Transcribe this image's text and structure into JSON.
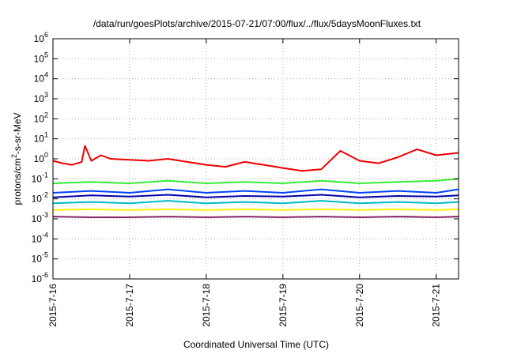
{
  "chart_data": {
    "type": "line",
    "title": "/data/run/goesPlots/archive/2015-07-21/07:00/flux/../flux/5daysMoonFluxes.txt",
    "xlabel": "Coordinated Universal Time (UTC)",
    "ylabel_parts": {
      "pre": "protons/cm",
      "sup": "2",
      "post": "-s-sr-MeV"
    },
    "y_scale": "log",
    "ylim": [
      1e-06,
      1000000.0
    ],
    "xlim": [
      "2015-07-16T00:00",
      "2015-07-21T07:00"
    ],
    "x_ticks": [
      "2015-7-16",
      "2015-7-17",
      "2015-7-18",
      "2015-7-19",
      "2015-7-20",
      "2015-7-21"
    ],
    "y_ticks": [
      {
        "base": "10",
        "exp": "6"
      },
      {
        "base": "10",
        "exp": "5"
      },
      {
        "base": "10",
        "exp": "4"
      },
      {
        "base": "10",
        "exp": "3"
      },
      {
        "base": "10",
        "exp": "2"
      },
      {
        "base": "10",
        "exp": "1"
      },
      {
        "base": "10",
        "exp": "0"
      },
      {
        "base": "10",
        "exp": "-1"
      },
      {
        "base": "10",
        "exp": "-2"
      },
      {
        "base": "10",
        "exp": "-3"
      },
      {
        "base": "10",
        "exp": "-4"
      },
      {
        "base": "10",
        "exp": "-5"
      },
      {
        "base": "10",
        "exp": "-6"
      }
    ],
    "grid": true,
    "series": [
      {
        "color": "#ee0000",
        "x": [
          "2015-07-16T00:00",
          "2015-07-16T03:00",
          "2015-07-16T06:00",
          "2015-07-16T09:00",
          "2015-07-16T10:00",
          "2015-07-16T12:00",
          "2015-07-16T15:00",
          "2015-07-16T18:00",
          "2015-07-17T00:00",
          "2015-07-17T06:00",
          "2015-07-17T12:00",
          "2015-07-17T18:00",
          "2015-07-18T00:00",
          "2015-07-18T06:00",
          "2015-07-18T12:00",
          "2015-07-18T18:00",
          "2015-07-19T00:00",
          "2015-07-19T06:00",
          "2015-07-19T12:00",
          "2015-07-19T18:00",
          "2015-07-20T00:00",
          "2015-07-20T06:00",
          "2015-07-20T12:00",
          "2015-07-20T18:00",
          "2015-07-21T00:00",
          "2015-07-21T07:00"
        ],
        "y": [
          0.8,
          0.6,
          0.5,
          0.7,
          4.5,
          0.8,
          1.5,
          1.0,
          0.9,
          0.8,
          1.0,
          0.7,
          0.5,
          0.4,
          0.7,
          0.5,
          0.35,
          0.25,
          0.3,
          2.5,
          0.8,
          0.6,
          1.2,
          3.0,
          1.5,
          2.0
        ]
      },
      {
        "color": "#33ee33",
        "x": [
          "2015-07-16T00:00",
          "2015-07-16T12:00",
          "2015-07-17T00:00",
          "2015-07-17T12:00",
          "2015-07-18T00:00",
          "2015-07-18T12:00",
          "2015-07-19T00:00",
          "2015-07-19T12:00",
          "2015-07-20T00:00",
          "2015-07-20T12:00",
          "2015-07-21T00:00",
          "2015-07-21T07:00"
        ],
        "y": [
          0.06,
          0.07,
          0.06,
          0.08,
          0.06,
          0.07,
          0.06,
          0.08,
          0.06,
          0.07,
          0.08,
          0.1
        ]
      },
      {
        "color": "#0044ff",
        "x": [
          "2015-07-16T00:00",
          "2015-07-16T12:00",
          "2015-07-17T00:00",
          "2015-07-17T12:00",
          "2015-07-18T00:00",
          "2015-07-18T12:00",
          "2015-07-19T00:00",
          "2015-07-19T12:00",
          "2015-07-20T00:00",
          "2015-07-20T12:00",
          "2015-07-21T00:00",
          "2015-07-21T07:00"
        ],
        "y": [
          0.02,
          0.025,
          0.02,
          0.03,
          0.02,
          0.025,
          0.02,
          0.03,
          0.02,
          0.025,
          0.02,
          0.03
        ]
      },
      {
        "color": "#0000aa",
        "x": [
          "2015-07-16T00:00",
          "2015-07-16T12:00",
          "2015-07-17T00:00",
          "2015-07-17T12:00",
          "2015-07-18T00:00",
          "2015-07-18T12:00",
          "2015-07-19T00:00",
          "2015-07-19T12:00",
          "2015-07-20T00:00",
          "2015-07-20T12:00",
          "2015-07-21T00:00",
          "2015-07-21T07:00"
        ],
        "y": [
          0.012,
          0.015,
          0.013,
          0.016,
          0.012,
          0.014,
          0.013,
          0.016,
          0.012,
          0.014,
          0.013,
          0.015
        ]
      },
      {
        "color": "#00bbcc",
        "x": [
          "2015-07-16T00:00",
          "2015-07-16T12:00",
          "2015-07-17T00:00",
          "2015-07-17T12:00",
          "2015-07-18T00:00",
          "2015-07-18T12:00",
          "2015-07-19T00:00",
          "2015-07-19T12:00",
          "2015-07-20T00:00",
          "2015-07-20T12:00",
          "2015-07-21T00:00",
          "2015-07-21T07:00"
        ],
        "y": [
          0.006,
          0.007,
          0.006,
          0.008,
          0.006,
          0.007,
          0.006,
          0.008,
          0.006,
          0.007,
          0.006,
          0.007
        ]
      },
      {
        "color": "#ffee00",
        "x": [
          "2015-07-16T00:00",
          "2015-07-16T12:00",
          "2015-07-17T00:00",
          "2015-07-17T12:00",
          "2015-07-18T00:00",
          "2015-07-18T12:00",
          "2015-07-19T00:00",
          "2015-07-19T12:00",
          "2015-07-20T00:00",
          "2015-07-20T12:00",
          "2015-07-21T00:00",
          "2015-07-21T07:00"
        ],
        "y": [
          0.0028,
          0.003,
          0.0028,
          0.003,
          0.0028,
          0.003,
          0.0028,
          0.003,
          0.0028,
          0.003,
          0.0028,
          0.003
        ]
      },
      {
        "color": "#882266",
        "x": [
          "2015-07-16T00:00",
          "2015-07-16T12:00",
          "2015-07-17T00:00",
          "2015-07-17T12:00",
          "2015-07-18T00:00",
          "2015-07-18T12:00",
          "2015-07-19T00:00",
          "2015-07-19T12:00",
          "2015-07-20T00:00",
          "2015-07-20T12:00",
          "2015-07-21T00:00",
          "2015-07-21T07:00"
        ],
        "y": [
          0.0013,
          0.0012,
          0.0012,
          0.0013,
          0.0012,
          0.0013,
          0.0012,
          0.0013,
          0.0012,
          0.0013,
          0.0012,
          0.0013
        ]
      }
    ]
  }
}
